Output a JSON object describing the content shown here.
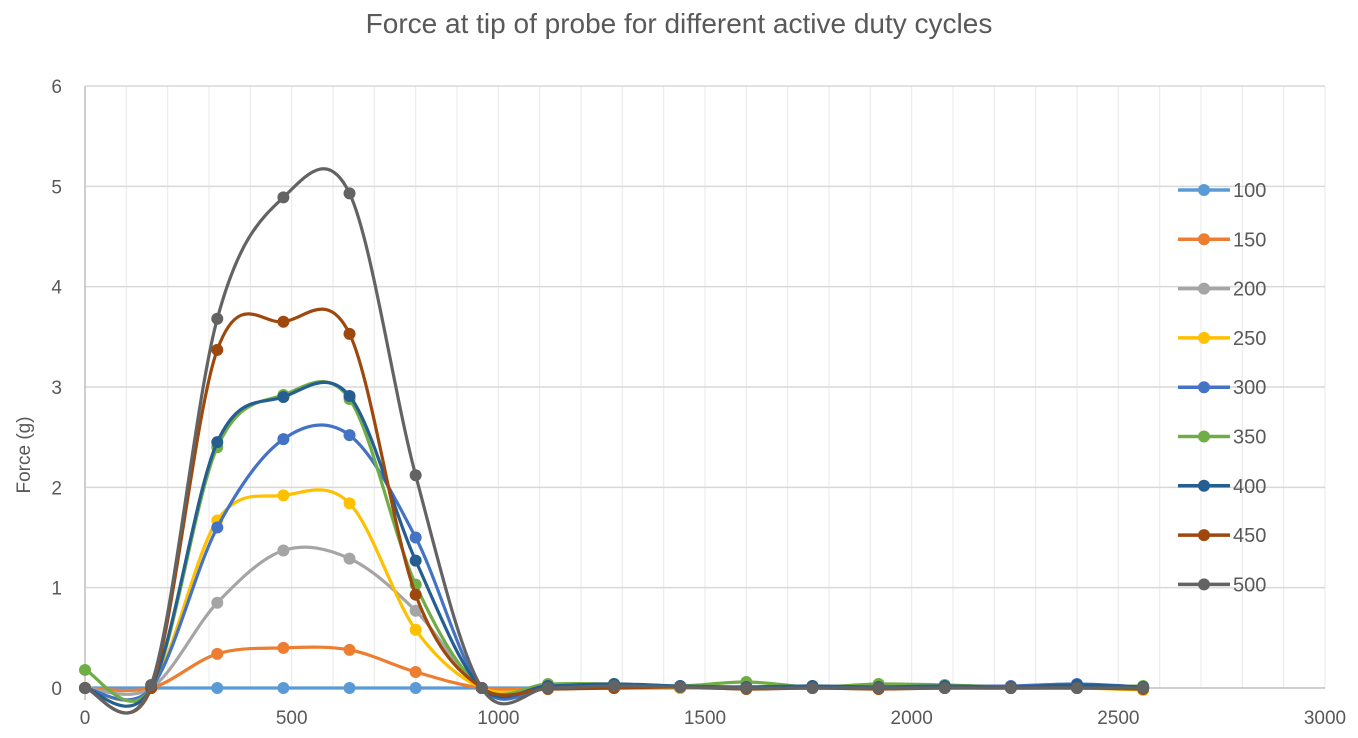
{
  "chart_data": {
    "type": "line",
    "title": "Force at tip of probe for different active duty cycles",
    "xlabel": "",
    "ylabel": "Force (g)",
    "xlim": [
      0,
      3000
    ],
    "ylim": [
      0,
      6
    ],
    "x_ticks": [
      0,
      500,
      1000,
      1500,
      2000,
      2500,
      3000
    ],
    "y_ticks": [
      0,
      1,
      2,
      3,
      4,
      5,
      6
    ],
    "grid": true,
    "smoothed": true,
    "legend_position": "right",
    "x": [
      0,
      160,
      320,
      480,
      640,
      800,
      960,
      1120,
      1280,
      1440,
      1600,
      1760,
      1920,
      2080,
      2240,
      2400,
      2560
    ],
    "series": [
      {
        "name": "100",
        "color": "#5B9BD5",
        "values": [
          0,
          0,
          0,
          0,
          0,
          0,
          0,
          0,
          0,
          0,
          0,
          0,
          0,
          0,
          0,
          0,
          0
        ]
      },
      {
        "name": "150",
        "color": "#ED7D31",
        "values": [
          0,
          0,
          0.34,
          0.4,
          0.38,
          0.16,
          0,
          0,
          0,
          0,
          0,
          0,
          0,
          0,
          0,
          0,
          0
        ]
      },
      {
        "name": "200",
        "color": "#A5A5A5",
        "values": [
          0,
          0,
          0.85,
          1.37,
          1.29,
          0.77,
          0,
          0,
          0,
          0,
          0,
          0,
          0,
          0.01,
          0,
          0,
          0
        ]
      },
      {
        "name": "250",
        "color": "#FFC000",
        "values": [
          0,
          0,
          1.67,
          1.92,
          1.84,
          0.58,
          0,
          0,
          0,
          0,
          0,
          0,
          0,
          0,
          0,
          0,
          -0.02
        ]
      },
      {
        "name": "300",
        "color": "#4472C4",
        "values": [
          0,
          0,
          1.6,
          2.48,
          2.52,
          1.5,
          0,
          0,
          0.02,
          0.01,
          0.01,
          0.02,
          0,
          0.02,
          0.02,
          0.04,
          0.01
        ]
      },
      {
        "name": "350",
        "color": "#70AD47",
        "values": [
          0.18,
          0,
          2.4,
          2.92,
          2.88,
          1.03,
          0,
          0.04,
          0.04,
          0.02,
          0.06,
          0.01,
          0.04,
          0.03,
          0.01,
          0.01,
          0.02
        ]
      },
      {
        "name": "400",
        "color": "#255E91",
        "values": [
          0,
          0,
          2.45,
          2.9,
          2.91,
          1.27,
          0,
          0.02,
          0.04,
          0.02,
          0.01,
          0.02,
          0.01,
          0.02,
          0.01,
          0.03,
          0.01
        ]
      },
      {
        "name": "450",
        "color": "#9E480E",
        "values": [
          0,
          0,
          3.37,
          3.65,
          3.53,
          0.93,
          0,
          -0.01,
          0,
          0.01,
          -0.01,
          0,
          -0.01,
          0,
          0,
          0,
          -0.01
        ]
      },
      {
        "name": "500",
        "color": "#636363",
        "values": [
          0,
          0.03,
          3.68,
          4.89,
          4.93,
          2.12,
          0,
          0,
          0.02,
          0.01,
          0,
          0,
          0,
          0,
          0,
          0,
          0
        ]
      }
    ]
  }
}
